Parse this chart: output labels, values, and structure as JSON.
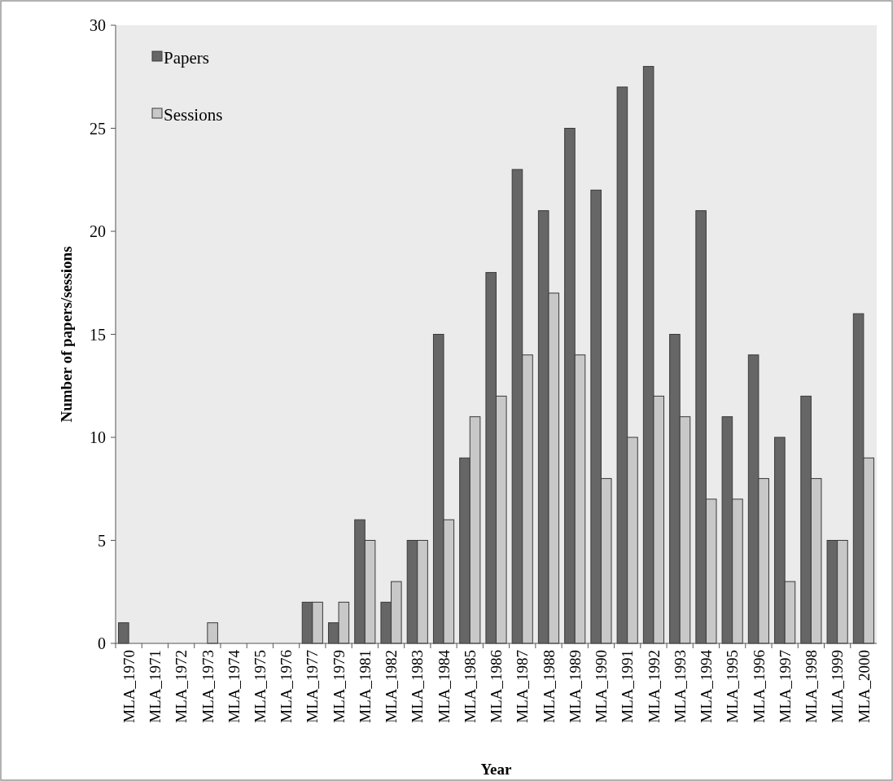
{
  "chart_data": {
    "type": "bar",
    "xlabel": "Year",
    "ylabel": "Number of papers/sessions",
    "categories": [
      "MLA_1970",
      "MLA_1971",
      "MLA_1972",
      "MLA_1973",
      "MLA_1974",
      "MLA_1975",
      "MLA_1976",
      "MLA_1977",
      "MLA_1979",
      "MLA_1981",
      "MLA_1982",
      "MLA_1983",
      "MLA_1984",
      "MLA_1985",
      "MLA_1986",
      "MLA_1987",
      "MLA_1988",
      "MLA_1989",
      "MLA_1990",
      "MLA_1991",
      "MLA_1992",
      "MLA_1993",
      "MLA_1994",
      "MLA_1995",
      "MLA_1996",
      "MLA_1997",
      "MLA_1998",
      "MLA_1999",
      "MLA_2000"
    ],
    "series": [
      {
        "name": "Papers",
        "color": "#666666",
        "values": [
          1,
          0,
          0,
          0,
          0,
          0,
          0,
          2,
          1,
          6,
          2,
          5,
          15,
          9,
          18,
          23,
          21,
          25,
          22,
          27,
          28,
          15,
          21,
          11,
          14,
          10,
          12,
          5,
          16
        ]
      },
      {
        "name": "Sessions",
        "color": "#c8c8c8",
        "values": [
          0,
          0,
          0,
          1,
          0,
          0,
          0,
          2,
          2,
          5,
          3,
          5,
          6,
          11,
          12,
          14,
          17,
          14,
          8,
          10,
          12,
          11,
          7,
          7,
          8,
          3,
          8,
          5,
          9
        ]
      }
    ],
    "ylim": [
      0,
      30
    ],
    "yticks": [
      0,
      5,
      10,
      15,
      20,
      25,
      30
    ],
    "grid": false,
    "legend": "top left"
  }
}
